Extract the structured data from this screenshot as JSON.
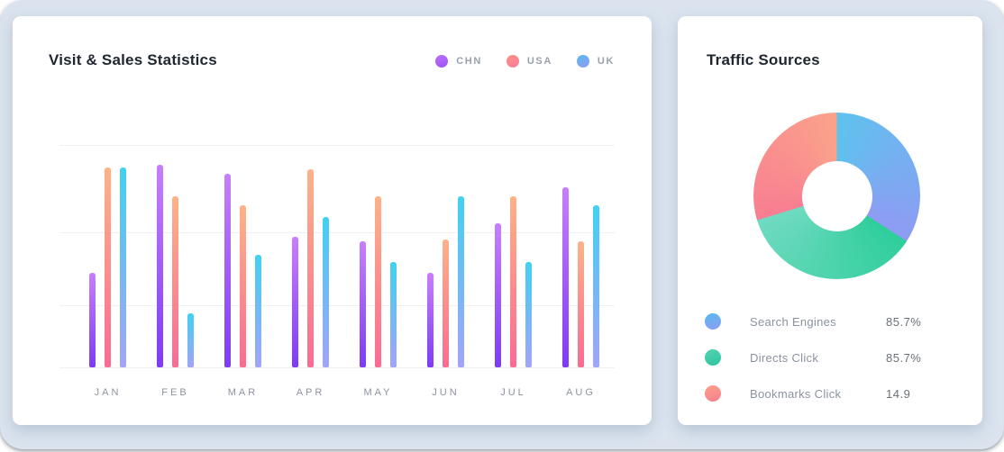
{
  "canvas": {
    "background": "#dae3ee",
    "card_background": "#ffffff"
  },
  "chart_data": [
    {
      "type": "bar",
      "title": "Visit & Sales Statistics",
      "categories": [
        "JAN",
        "FEB",
        "MAR",
        "APR",
        "MAY",
        "JUN",
        "JUL",
        "AUG"
      ],
      "series": [
        {
          "name": "CHN",
          "values": [
            42,
            90,
            86,
            58,
            56,
            42,
            64,
            80
          ],
          "bar_gradient": [
            "#c87ffb",
            "#7e3bf3"
          ],
          "dot_gradient": [
            "#bb72fa",
            "#9d50f7"
          ]
        },
        {
          "name": "USA",
          "values": [
            89,
            76,
            72,
            88,
            76,
            57,
            76,
            56
          ],
          "bar_gradient": [
            "#fcb288",
            "#fa6b93"
          ],
          "dot_gradient": [
            "#fa9183",
            "#fa7d9b"
          ]
        },
        {
          "name": "UK",
          "values": [
            89,
            24,
            50,
            67,
            47,
            76,
            47,
            72
          ],
          "bar_gradient": [
            "#41d1f1",
            "#a2a4f8"
          ],
          "dot_gradient": [
            "#58b9ed",
            "#8f9cf4"
          ]
        }
      ],
      "values_scale": "relative-0-100",
      "ylim": [
        0,
        100
      ],
      "y_axis_labels_visible": false,
      "gridline_count": 4,
      "grid": true,
      "legend_position": "top-right"
    },
    {
      "type": "donut",
      "title": "Traffic Sources",
      "slices": [
        {
          "label": "Search Engines",
          "display_value": "85.7%",
          "share_pct": 34.2,
          "angle_start_deg": 0,
          "angle_end_deg": 123,
          "color_start": "#5ec2ee",
          "color_end": "#8f9bf3",
          "dot_gradient": [
            "#58b9ed",
            "#8f9cf4"
          ]
        },
        {
          "label": "Directs Click",
          "display_value": "85.7%",
          "share_pct": 36.1,
          "angle_start_deg": 123,
          "angle_end_deg": 253,
          "color_start": "#2fce9c",
          "color_end": "#6fdac0",
          "dot_gradient": [
            "#52d4b2",
            "#2ec49e"
          ]
        },
        {
          "label": "Bookmarks Click",
          "display_value": "14.9",
          "share_pct": 29.7,
          "angle_start_deg": 253,
          "angle_end_deg": 360,
          "color_start": "#f87e91",
          "color_end": "#fba28b",
          "dot_gradient": [
            "#fb9f8b",
            "#f87f90"
          ]
        }
      ],
      "hole_ratio": 0.42,
      "legend_position": "bottom-left"
    }
  ]
}
